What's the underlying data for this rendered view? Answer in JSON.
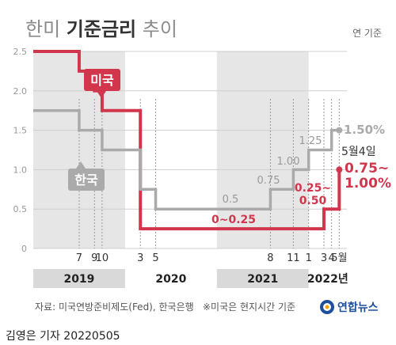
{
  "header": {
    "title_prefix": "한미 ",
    "title_bold": "기준금리",
    "title_suffix": " 추이",
    "unit": "연 기준"
  },
  "chart_data": {
    "type": "line",
    "ylim": [
      0,
      2.5
    ],
    "yticks": [
      "0",
      "0.5",
      "1.0",
      "1.5",
      "2.0",
      "2.5"
    ],
    "x_months": {
      "start": "2019-01",
      "end": "2022-06"
    },
    "xtick_labels": [
      {
        "label": "7",
        "month": "2019-07"
      },
      {
        "label": "9",
        "month": "2019-09"
      },
      {
        "label": "10",
        "month": "2019-10"
      },
      {
        "label": "3",
        "month": "2020-03"
      },
      {
        "label": "5",
        "month": "2020-05"
      },
      {
        "label": "8",
        "month": "2021-08"
      },
      {
        "label": "11",
        "month": "2021-11"
      },
      {
        "label": "1",
        "month": "2022-01"
      },
      {
        "label": "3",
        "month": "2022-03"
      },
      {
        "label": "4",
        "month": "2022-04"
      },
      {
        "label": "5월",
        "month": "2022-05"
      }
    ],
    "years": [
      {
        "label": "2019",
        "start": "2019-01",
        "end": "2019-12"
      },
      {
        "label": "2020",
        "start": "2020-01",
        "end": "2020-12"
      },
      {
        "label": "2021",
        "start": "2021-01",
        "end": "2021-12"
      },
      {
        "label": "2022년",
        "start": "2022-01",
        "end": "2022-06"
      }
    ],
    "series": [
      {
        "name": "미국",
        "color": "#d1364d",
        "steps": [
          {
            "month": "2019-01",
            "value": 2.5
          },
          {
            "month": "2019-07",
            "value": 2.25
          },
          {
            "month": "2019-09",
            "value": 2.0
          },
          {
            "month": "2019-10",
            "value": 1.75
          },
          {
            "month": "2020-03",
            "value": 0.25
          },
          {
            "month": "2022-03",
            "value": 0.5
          },
          {
            "month": "2022-05",
            "value": 1.0
          }
        ],
        "end": "2022-05"
      },
      {
        "name": "한국",
        "color": "#aaaaaa",
        "steps": [
          {
            "month": "2019-01",
            "value": 1.75
          },
          {
            "month": "2019-07",
            "value": 1.5
          },
          {
            "month": "2019-10",
            "value": 1.25
          },
          {
            "month": "2020-03",
            "value": 0.75
          },
          {
            "month": "2020-05",
            "value": 0.5
          },
          {
            "month": "2021-08",
            "value": 0.75
          },
          {
            "month": "2021-11",
            "value": 1.0
          },
          {
            "month": "2022-01",
            "value": 1.25
          },
          {
            "month": "2022-04",
            "value": 1.5
          }
        ],
        "end": "2022-05"
      }
    ],
    "annotations": [
      {
        "text": "0.5",
        "series": "한국"
      },
      {
        "text": "0.75",
        "series": "한국"
      },
      {
        "text": "1.00",
        "series": "한국"
      },
      {
        "text": "1.25",
        "series": "한국"
      },
      {
        "text": "1.50%",
        "series": "한국"
      },
      {
        "text": "0~0.25",
        "series": "미국"
      },
      {
        "text": "0.25~",
        "series": "미국"
      },
      {
        "text": "0.50",
        "series": "미국"
      },
      {
        "text": "5월4일",
        "series": "미국"
      },
      {
        "text": "0.75~",
        "series": "미국"
      },
      {
        "text": "1.00%",
        "series": "미국"
      }
    ]
  },
  "footer": {
    "source": "자료: 미국연방준비제도(Fed), 한국은행",
    "note": "※미국은 현지시간 기준",
    "logo_text": "연합뉴스",
    "byline": "김영은 기자  20220505"
  }
}
